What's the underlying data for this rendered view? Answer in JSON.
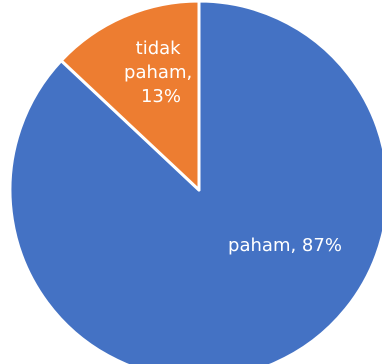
{
  "chart_data": {
    "type": "pie",
    "title": "",
    "legend": "none",
    "slices": [
      {
        "label": "paham",
        "value": 87,
        "color": "#4472C4",
        "display_label": "paham, 87%"
      },
      {
        "label": "tidak paham",
        "value": 13,
        "color": "#ED7D31",
        "display_label_lines": [
          "tidak",
          "paham,",
          "13%"
        ]
      }
    ]
  }
}
